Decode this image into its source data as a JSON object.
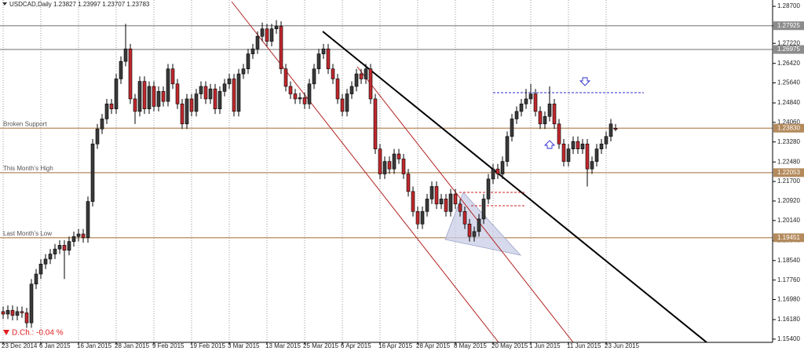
{
  "chart_data": {
    "type": "candlestick",
    "title": "USDCAD,Daily  1.23827 1.23997 1.23707 1.23783",
    "daily_change": "D.Ch.: -0.04 %",
    "up_color": "#3a3a3a",
    "down_color": "#c0282d",
    "ylim": [
      1.1527,
      1.2889
    ],
    "yticks": [
      {
        "value": 1.287,
        "label": "1.28700"
      },
      {
        "value": 1.2792,
        "label": "1.27920"
      },
      {
        "value": 1.2722,
        "label": "1.27220"
      },
      {
        "value": 1.2642,
        "label": "1.26420"
      },
      {
        "value": 1.2564,
        "label": "1.25640"
      },
      {
        "value": 1.2484,
        "label": "1.24840"
      },
      {
        "value": 1.2406,
        "label": "1.24060"
      },
      {
        "value": 1.2328,
        "label": "1.23280"
      },
      {
        "value": 1.2248,
        "label": "1.22480"
      },
      {
        "value": 1.217,
        "label": "1.21700"
      },
      {
        "value": 1.2092,
        "label": "1.20920"
      },
      {
        "value": 1.2014,
        "label": "1.20140"
      },
      {
        "value": 1.1934,
        "label": "1.19340"
      },
      {
        "value": 1.1854,
        "label": "1.18540"
      },
      {
        "value": 1.1776,
        "label": "1.17760"
      },
      {
        "value": 1.1698,
        "label": "1.16980"
      },
      {
        "value": 1.1618,
        "label": "1.16180"
      },
      {
        "value": 1.154,
        "label": "1.15400"
      }
    ],
    "levels": [
      {
        "value": 1.27925,
        "label": "1.27925",
        "color": "#8c8c8c"
      },
      {
        "value": 1.26975,
        "label": "1.26975",
        "color": "#8c8c8c"
      },
      {
        "value": 1.2383,
        "label": "1.23830",
        "name": "Broken Support",
        "color": "#b48a5c"
      },
      {
        "value": 1.22053,
        "label": "1.22053",
        "name": "This Month's High",
        "color": "#b48a5c"
      },
      {
        "value": 1.19451,
        "label": "1.19451",
        "name": "Last Month's Low",
        "color": "#b48a5c"
      }
    ],
    "grid": true,
    "categories": [
      "23 Dec 2014",
      null,
      null,
      null,
      null,
      null,
      null,
      null,
      "6 Jan 2015",
      null,
      null,
      null,
      null,
      null,
      null,
      null,
      "16 Jan 2015",
      null,
      null,
      null,
      null,
      null,
      null,
      null,
      "28 Jan 2015",
      null,
      null,
      null,
      null,
      null,
      null,
      null,
      "9 Feb 2015",
      null,
      null,
      null,
      null,
      null,
      null,
      null,
      "19 Feb 2015",
      null,
      null,
      null,
      null,
      null,
      null,
      null,
      "3 Mar 2015",
      null,
      null,
      null,
      null,
      null,
      null,
      null,
      "13 Mar 2015",
      null,
      null,
      null,
      null,
      null,
      null,
      null,
      "25 Mar 2015",
      null,
      null,
      null,
      null,
      null,
      null,
      null,
      "6 Apr 2015",
      null,
      null,
      null,
      null,
      null,
      null,
      null,
      "16 Apr 2015",
      null,
      null,
      null,
      null,
      null,
      null,
      null,
      "28 Apr 2015",
      null,
      null,
      null,
      null,
      null,
      null,
      null,
      "8 May 2015",
      null,
      null,
      null,
      null,
      null,
      null,
      null,
      "20 May 2015",
      null,
      null,
      null,
      null,
      null,
      null,
      null,
      "1 Jun 2015",
      null,
      null,
      null,
      null,
      null,
      null,
      null,
      "11 Jun 2015",
      null,
      null,
      null,
      null,
      null,
      null,
      null,
      "23 Jun 2015",
      null,
      null
    ],
    "candles": [
      [
        1.165,
        1.167,
        1.162,
        1.164
      ],
      [
        1.164,
        1.1675,
        1.162,
        1.1655
      ],
      [
        1.1655,
        1.1675,
        1.1615,
        1.1635
      ],
      [
        1.1635,
        1.167,
        1.1615,
        1.165
      ],
      [
        1.165,
        1.167,
        1.1625,
        1.1645
      ],
      [
        1.1645,
        1.1665,
        1.1585,
        1.1605
      ],
      [
        1.1605,
        1.178,
        1.1585,
        1.176
      ],
      [
        1.176,
        1.182,
        1.174,
        1.18
      ],
      [
        1.18,
        1.186,
        1.178,
        1.184
      ],
      [
        1.184,
        1.188,
        1.182,
        1.186
      ],
      [
        1.186,
        1.19,
        1.184,
        1.188
      ],
      [
        1.188,
        1.192,
        1.186,
        1.19
      ],
      [
        1.19,
        1.1935,
        1.188,
        1.1915
      ],
      [
        1.1915,
        1.1935,
        1.178,
        1.1895
      ],
      [
        1.1895,
        1.195,
        1.1875,
        1.193
      ],
      [
        1.193,
        1.197,
        1.191,
        1.195
      ],
      [
        1.195,
        1.198,
        1.193,
        1.196
      ],
      [
        1.196,
        1.198,
        1.1925,
        1.1945
      ],
      [
        1.1945,
        1.211,
        1.1925,
        1.209
      ],
      [
        1.209,
        1.234,
        1.207,
        1.232
      ],
      [
        1.232,
        1.24,
        1.23,
        1.238
      ],
      [
        1.238,
        1.244,
        1.236,
        1.242
      ],
      [
        1.242,
        1.25,
        1.24,
        1.248
      ],
      [
        1.248,
        1.25,
        1.244,
        1.246
      ],
      [
        1.246,
        1.26,
        1.244,
        1.258
      ],
      [
        1.258,
        1.267,
        1.256,
        1.265
      ],
      [
        1.265,
        1.28,
        1.263,
        1.27
      ],
      [
        1.27,
        1.272,
        1.248,
        1.25
      ],
      [
        1.25,
        1.252,
        1.24,
        1.245
      ],
      [
        1.245,
        1.259,
        1.243,
        1.257
      ],
      [
        1.257,
        1.259,
        1.244,
        1.246
      ],
      [
        1.246,
        1.257,
        1.244,
        1.255
      ],
      [
        1.255,
        1.257,
        1.245,
        1.247
      ],
      [
        1.247,
        1.255,
        1.245,
        1.253
      ],
      [
        1.253,
        1.255,
        1.247,
        1.249
      ],
      [
        1.249,
        1.264,
        1.247,
        1.262
      ],
      [
        1.262,
        1.264,
        1.254,
        1.256
      ],
      [
        1.256,
        1.258,
        1.246,
        1.248
      ],
      [
        1.248,
        1.25,
        1.238,
        1.24
      ],
      [
        1.24,
        1.252,
        1.238,
        1.25
      ],
      [
        1.25,
        1.252,
        1.243,
        1.245
      ],
      [
        1.245,
        1.254,
        1.243,
        1.252
      ],
      [
        1.252,
        1.257,
        1.25,
        1.255
      ],
      [
        1.255,
        1.257,
        1.248,
        1.25
      ],
      [
        1.25,
        1.256,
        1.248,
        1.254
      ],
      [
        1.254,
        1.256,
        1.244,
        1.246
      ],
      [
        1.246,
        1.255,
        1.244,
        1.253
      ],
      [
        1.253,
        1.258,
        1.251,
        1.256
      ],
      [
        1.256,
        1.26,
        1.254,
        1.258
      ],
      [
        1.258,
        1.26,
        1.243,
        1.245
      ],
      [
        1.245,
        1.262,
        1.243,
        1.26
      ],
      [
        1.26,
        1.264,
        1.258,
        1.262
      ],
      [
        1.262,
        1.27,
        1.26,
        1.268
      ],
      [
        1.268,
        1.272,
        1.266,
        1.27
      ],
      [
        1.27,
        1.277,
        1.268,
        1.275
      ],
      [
        1.275,
        1.2805,
        1.273,
        1.278
      ],
      [
        1.278,
        1.28,
        1.271,
        1.273
      ],
      [
        1.273,
        1.28,
        1.271,
        1.278
      ],
      [
        1.278,
        1.2815,
        1.276,
        1.279
      ],
      [
        1.279,
        1.281,
        1.26,
        1.262
      ],
      [
        1.262,
        1.264,
        1.253,
        1.255
      ],
      [
        1.255,
        1.257,
        1.25,
        1.252
      ],
      [
        1.252,
        1.254,
        1.248,
        1.25
      ],
      [
        1.25,
        1.2525,
        1.248,
        1.2505
      ],
      [
        1.2505,
        1.2525,
        1.246,
        1.248
      ],
      [
        1.248,
        1.258,
        1.246,
        1.256
      ],
      [
        1.256,
        1.264,
        1.254,
        1.262
      ],
      [
        1.262,
        1.27,
        1.26,
        1.268
      ],
      [
        1.268,
        1.272,
        1.266,
        1.27
      ],
      [
        1.27,
        1.272,
        1.26,
        1.262
      ],
      [
        1.262,
        1.264,
        1.256,
        1.258
      ],
      [
        1.258,
        1.26,
        1.248,
        1.25
      ],
      [
        1.25,
        1.252,
        1.243,
        1.245
      ],
      [
        1.245,
        1.254,
        1.243,
        1.252
      ],
      [
        1.252,
        1.257,
        1.25,
        1.255
      ],
      [
        1.255,
        1.262,
        1.253,
        1.26
      ],
      [
        1.26,
        1.262,
        1.256,
        1.258
      ],
      [
        1.258,
        1.264,
        1.256,
        1.262
      ],
      [
        1.262,
        1.264,
        1.248,
        1.25
      ],
      [
        1.25,
        1.252,
        1.228,
        1.23
      ],
      [
        1.23,
        1.232,
        1.218,
        1.22
      ],
      [
        1.22,
        1.227,
        1.218,
        1.225
      ],
      [
        1.225,
        1.227,
        1.22,
        1.222
      ],
      [
        1.222,
        1.23,
        1.22,
        1.228
      ],
      [
        1.228,
        1.23,
        1.224,
        1.226
      ],
      [
        1.226,
        1.228,
        1.218,
        1.22
      ],
      [
        1.22,
        1.222,
        1.211,
        1.213
      ],
      [
        1.213,
        1.215,
        1.203,
        1.205
      ],
      [
        1.205,
        1.207,
        1.198,
        1.2
      ],
      [
        1.2,
        1.207,
        1.198,
        1.205
      ],
      [
        1.205,
        1.212,
        1.203,
        1.21
      ],
      [
        1.21,
        1.217,
        1.208,
        1.215
      ],
      [
        1.215,
        1.217,
        1.206,
        1.208
      ],
      [
        1.208,
        1.212,
        1.206,
        1.21
      ],
      [
        1.21,
        1.212,
        1.203,
        1.205
      ],
      [
        1.205,
        1.214,
        1.203,
        1.212
      ],
      [
        1.212,
        1.214,
        1.206,
        1.208
      ],
      [
        1.208,
        1.21,
        1.203,
        1.205
      ],
      [
        1.205,
        1.207,
        1.198,
        1.2
      ],
      [
        1.2,
        1.202,
        1.193,
        1.195
      ],
      [
        1.195,
        1.199,
        1.193,
        1.197
      ],
      [
        1.197,
        1.204,
        1.195,
        1.202
      ],
      [
        1.202,
        1.212,
        1.2,
        1.21
      ],
      [
        1.21,
        1.22,
        1.208,
        1.218
      ],
      [
        1.218,
        1.224,
        1.216,
        1.222
      ],
      [
        1.222,
        1.224,
        1.218,
        1.22
      ],
      [
        1.22,
        1.227,
        1.218,
        1.225
      ],
      [
        1.225,
        1.237,
        1.223,
        1.235
      ],
      [
        1.235,
        1.244,
        1.233,
        1.242
      ],
      [
        1.242,
        1.247,
        1.24,
        1.245
      ],
      [
        1.245,
        1.25,
        1.243,
        1.248
      ],
      [
        1.248,
        1.254,
        1.246,
        1.25
      ],
      [
        1.25,
        1.256,
        1.248,
        1.252
      ],
      [
        1.252,
        1.254,
        1.243,
        1.245
      ],
      [
        1.245,
        1.247,
        1.238,
        1.24
      ],
      [
        1.24,
        1.245,
        1.238,
        1.243
      ],
      [
        1.243,
        1.255,
        1.241,
        1.248
      ],
      [
        1.248,
        1.25,
        1.238,
        1.24
      ],
      [
        1.24,
        1.242,
        1.23,
        1.232
      ],
      [
        1.232,
        1.234,
        1.223,
        1.225
      ],
      [
        1.225,
        1.232,
        1.223,
        1.23
      ],
      [
        1.23,
        1.235,
        1.228,
        1.233
      ],
      [
        1.233,
        1.235,
        1.228,
        1.23
      ],
      [
        1.23,
        1.234,
        1.228,
        1.232
      ],
      [
        1.232,
        1.234,
        1.215,
        1.222
      ],
      [
        1.222,
        1.227,
        1.22,
        1.225
      ],
      [
        1.225,
        1.232,
        1.223,
        1.23
      ],
      [
        1.23,
        1.234,
        1.228,
        1.232
      ],
      [
        1.232,
        1.237,
        1.23,
        1.235
      ],
      [
        1.235,
        1.242,
        1.233,
        1.24
      ],
      [
        1.23827,
        1.23997,
        1.23707,
        1.23783
      ]
    ]
  }
}
